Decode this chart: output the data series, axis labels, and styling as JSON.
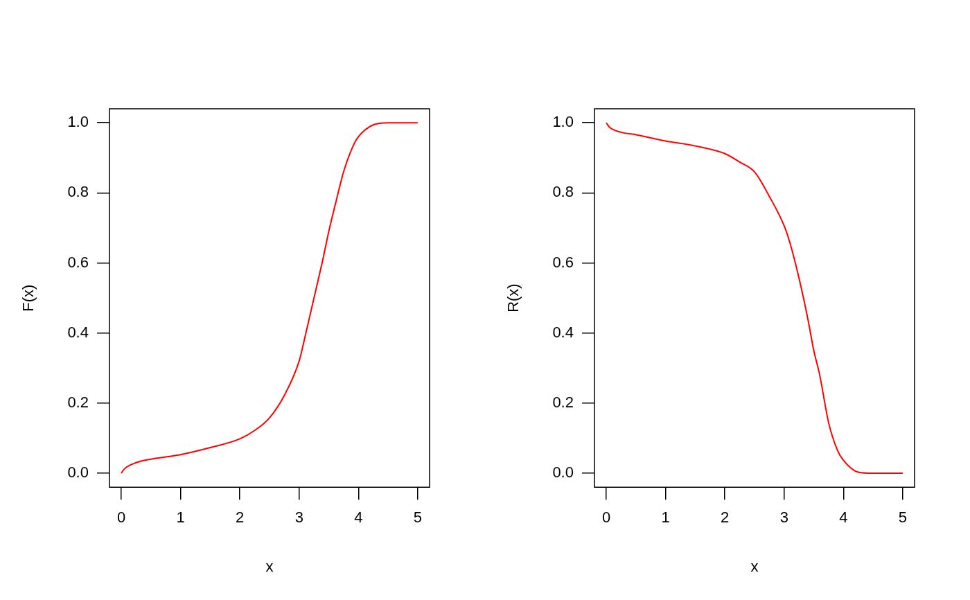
{
  "chart_data": [
    {
      "type": "line",
      "xlabel": "x",
      "ylabel": "F(x)",
      "x": [
        0,
        0.05,
        0.25,
        0.5,
        1,
        1.5,
        2,
        2.25,
        2.5,
        2.75,
        3,
        3.1,
        3.25,
        3.4,
        3.5,
        3.6,
        3.75,
        3.9,
        4,
        4.25,
        4.5,
        5
      ],
      "series": [
        {
          "color": "#ff0000",
          "values": [
            0,
            0.012,
            0.03,
            0.04,
            0.053,
            0.073,
            0.098,
            0.122,
            0.158,
            0.222,
            0.32,
            0.39,
            0.5,
            0.61,
            0.69,
            0.76,
            0.86,
            0.93,
            0.96,
            0.994,
            1,
            1
          ]
        }
      ],
      "xlim": [
        -0.2,
        5.2
      ],
      "ylim": [
        -0.04,
        1.04
      ],
      "xticks": [
        0,
        1,
        2,
        3,
        4,
        5
      ],
      "yticks": [
        {
          "value": 0,
          "label": "0.0"
        },
        {
          "value": 0.2,
          "label": "0.2"
        },
        {
          "value": 0.4,
          "label": "0.4"
        },
        {
          "value": 0.6,
          "label": "0.6"
        },
        {
          "value": 0.8,
          "label": "0.8"
        },
        {
          "value": 1,
          "label": "1.0"
        }
      ]
    },
    {
      "type": "line",
      "xlabel": "x",
      "ylabel": "R(x)",
      "x": [
        0,
        0.05,
        0.25,
        0.5,
        1,
        1.5,
        2,
        2.25,
        2.5,
        2.75,
        3,
        3.1,
        3.25,
        3.4,
        3.5,
        3.6,
        3.75,
        3.9,
        4,
        4.25,
        4.5,
        5
      ],
      "series": [
        {
          "color": "#ff0000",
          "values": [
            1,
            0.988,
            0.973,
            0.966,
            0.948,
            0.934,
            0.912,
            0.888,
            0.86,
            0.79,
            0.706,
            0.656,
            0.557,
            0.44,
            0.35,
            0.28,
            0.144,
            0.065,
            0.037,
            0.003,
            0,
            0
          ]
        }
      ],
      "xlim": [
        -0.2,
        5.2
      ],
      "ylim": [
        -0.04,
        1.04
      ],
      "xticks": [
        0,
        1,
        2,
        3,
        4,
        5
      ],
      "yticks": [
        {
          "value": 0,
          "label": "0.0"
        },
        {
          "value": 0.2,
          "label": "0.2"
        },
        {
          "value": 0.4,
          "label": "0.4"
        },
        {
          "value": 0.6,
          "label": "0.6"
        },
        {
          "value": 0.8,
          "label": "0.8"
        },
        {
          "value": 1,
          "label": "1.0"
        }
      ]
    }
  ]
}
